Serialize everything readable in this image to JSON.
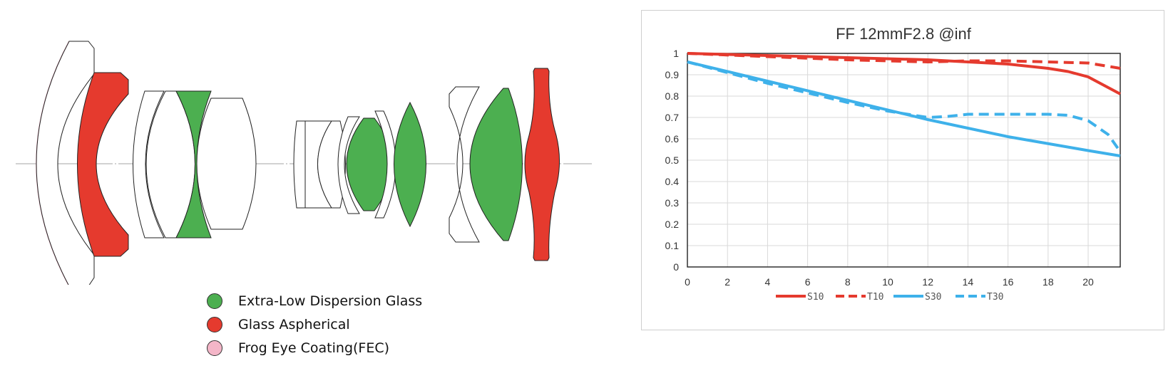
{
  "legend": {
    "items": [
      {
        "label": "Extra-Low Dispersion Glass",
        "color": "#4caf50"
      },
      {
        "label": "Glass Aspherical",
        "color": "#e53a2e"
      },
      {
        "label": "Frog Eye Coating(FEC)",
        "color": "#f4b6c8"
      }
    ]
  },
  "colors": {
    "ed_glass": "#4caf50",
    "aspherical": "#e53a2e",
    "fec": "#f0a6bd",
    "s10": "#e53a2e",
    "s30": "#3eb1ea"
  },
  "chart_data": {
    "type": "line",
    "title": "FF 12mmF2.8 @inf",
    "xlabel": "",
    "ylabel": "",
    "xlim": [
      0,
      21.6
    ],
    "ylim": [
      0,
      1
    ],
    "x_ticks": [
      "0",
      "2",
      "4",
      "6",
      "8",
      "10",
      "12",
      "14",
      "16",
      "18",
      "20"
    ],
    "y_ticks": [
      "0",
      "0.1",
      "0.2",
      "0.3",
      "0.4",
      "0.5",
      "0.6",
      "0.7",
      "0.8",
      "0.9",
      "1"
    ],
    "grid": true,
    "legend_position": "bottom",
    "series": [
      {
        "name": "S10",
        "color": "#e53a2e",
        "dash": "solid",
        "x": [
          0,
          4,
          8,
          12,
          14,
          16,
          18,
          19,
          20,
          21.6
        ],
        "y": [
          1.0,
          0.99,
          0.98,
          0.97,
          0.96,
          0.95,
          0.93,
          0.915,
          0.89,
          0.81
        ]
      },
      {
        "name": "T10",
        "color": "#e53a2e",
        "dash": "dashed",
        "x": [
          0,
          4,
          8,
          12,
          14,
          16,
          18,
          20,
          21.6
        ],
        "y": [
          1.0,
          0.985,
          0.97,
          0.96,
          0.965,
          0.965,
          0.96,
          0.955,
          0.93
        ]
      },
      {
        "name": "S30",
        "color": "#3eb1ea",
        "dash": "solid",
        "x": [
          0,
          4,
          8,
          12,
          16,
          20,
          21.6
        ],
        "y": [
          0.96,
          0.87,
          0.78,
          0.69,
          0.61,
          0.545,
          0.52
        ]
      },
      {
        "name": "T30",
        "color": "#3eb1ea",
        "dash": "dashed",
        "x": [
          0,
          4,
          8,
          10,
          12,
          13,
          14,
          16,
          18,
          19,
          20,
          21,
          21.6
        ],
        "y": [
          0.96,
          0.86,
          0.77,
          0.73,
          0.7,
          0.705,
          0.715,
          0.715,
          0.715,
          0.71,
          0.685,
          0.62,
          0.54
        ]
      }
    ]
  }
}
